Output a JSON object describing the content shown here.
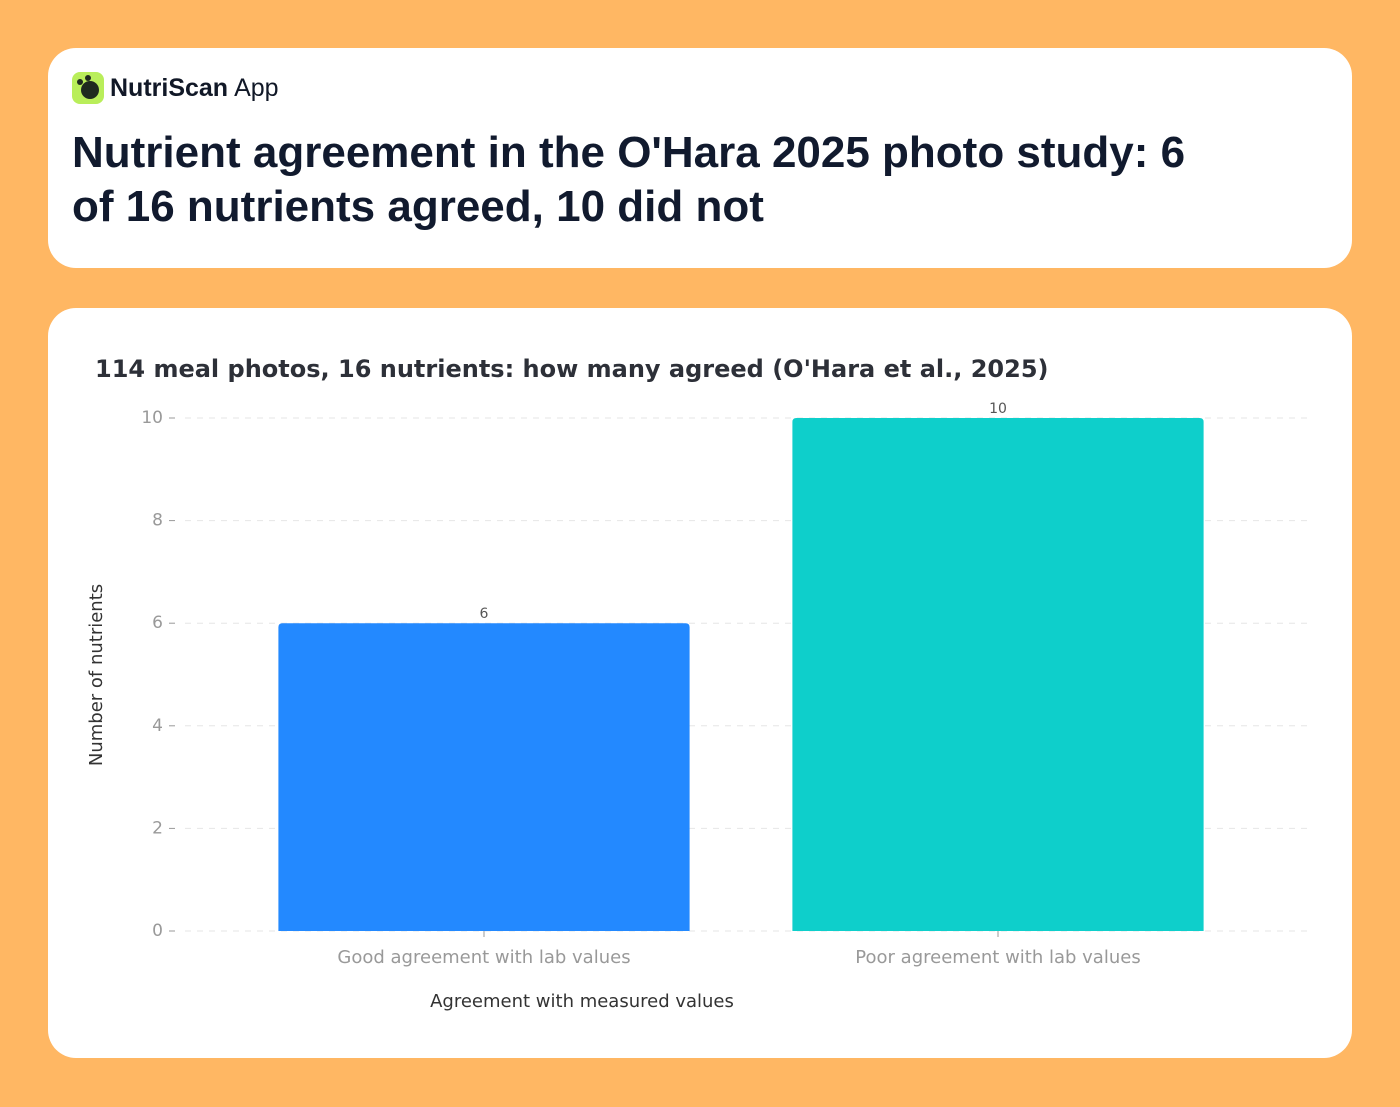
{
  "header": {
    "brand": "NutriScan",
    "brand_suffix": "App",
    "title": "Nutrient agreement in the O'Hara 2025 photo study: 6 of 16 nutrients agreed, 10 did not"
  },
  "chart_data": {
    "type": "bar",
    "title": "114 meal photos, 16 nutrients: how many agreed (O'Hara et al., 2025)",
    "categories": [
      "Good agreement with lab values",
      "Poor agreement with lab values"
    ],
    "values": [
      6,
      10
    ],
    "colors": [
      "#2389ff",
      "#0ecfcb"
    ],
    "x_label": "Agreement with measured values",
    "y_label": "Number of nutrients",
    "ylim": [
      0,
      10
    ],
    "yticks": [
      0,
      2,
      4,
      6,
      8,
      10
    ],
    "grid": true
  }
}
